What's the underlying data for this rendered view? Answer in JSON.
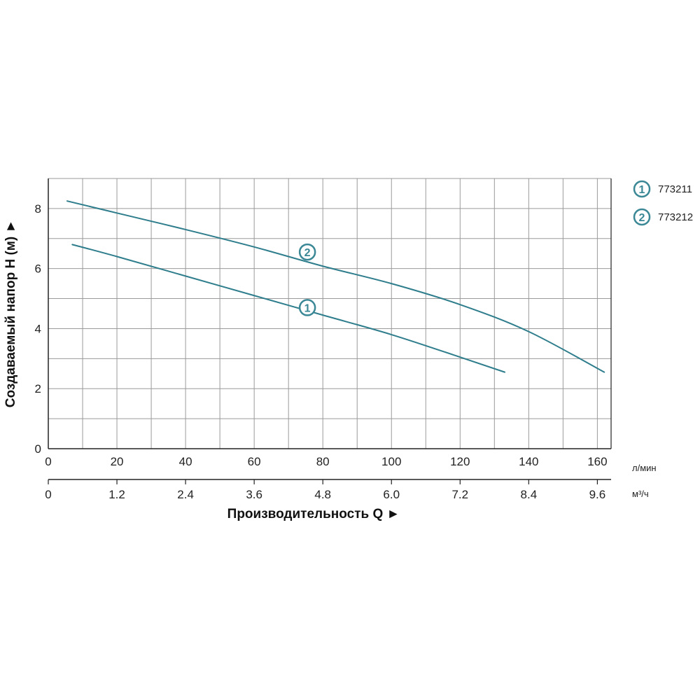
{
  "chart_data": {
    "type": "line",
    "title": "",
    "xlabel": "Производительность Q ►",
    "ylabel": "Создаваемый напор H (м) ►",
    "xlim": [
      0,
      164
    ],
    "ylim": [
      0,
      9
    ],
    "x_unit": "л/мин",
    "x2_unit": "м³/ч",
    "x_ticks": [
      "0",
      "20",
      "40",
      "60",
      "80",
      "100",
      "120",
      "140",
      "160"
    ],
    "x_tick_values": [
      0,
      20,
      40,
      60,
      80,
      100,
      120,
      140,
      160
    ],
    "x2_ticks": [
      "0",
      "1.2",
      "2.4",
      "3.6",
      "4.8",
      "6.0",
      "7.2",
      "8.4",
      "9.6"
    ],
    "y_ticks": [
      "0",
      "2",
      "4",
      "6",
      "8"
    ],
    "y_tick_values": [
      0,
      2,
      4,
      6,
      8
    ],
    "x_grid_step": 10,
    "y_grid_step": 1,
    "grid": true,
    "legend_position": "top-right",
    "series": [
      {
        "name": "773211",
        "marker": "1",
        "x": [
          7,
          20,
          40,
          60,
          80,
          100,
          120,
          133
        ],
        "values": [
          6.8,
          6.4,
          5.75,
          5.1,
          4.45,
          3.8,
          3.05,
          2.55
        ],
        "label_at": [
          75.5,
          4.7
        ]
      },
      {
        "name": "773212",
        "marker": "2",
        "x": [
          5.5,
          20,
          40,
          60,
          80,
          100,
          120,
          140,
          162
        ],
        "values": [
          8.25,
          7.85,
          7.3,
          6.72,
          6.08,
          5.5,
          4.8,
          3.9,
          2.55
        ],
        "label_at": [
          75.5,
          6.55
        ]
      }
    ],
    "colors": {
      "line": "#2e7d8c",
      "marker": "#3a8795",
      "grid": "#9a9a9a",
      "axis": "#222222"
    }
  }
}
